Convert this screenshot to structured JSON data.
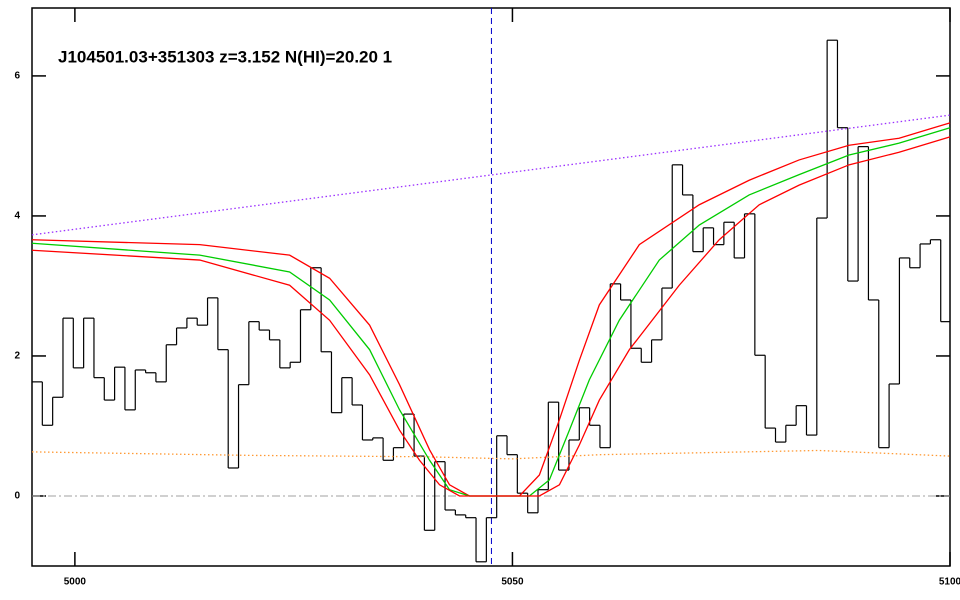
{
  "chart_data": {
    "type": "line",
    "title": "J104501.03+351303 z=3.152 N(HI)=20.20 1",
    "xlim": [
      4995.1,
      5100
    ],
    "ylim": [
      -1,
      6.97
    ],
    "xticks": [
      5000,
      5050,
      5100
    ],
    "yticks": [
      0,
      2,
      4,
      6
    ],
    "hline": {
      "value": 0,
      "color": "#a0a0a0"
    },
    "vline": {
      "value": 5047.6,
      "color": "#0000cc"
    },
    "series": [
      {
        "color": "#000000",
        "style": "steps",
        "x": [
          4995.69,
          4996.87,
          4998.05,
          4999.23,
          5000.41,
          5001.59,
          5002.77,
          5003.95,
          5005.13,
          5006.31,
          5007.49,
          5008.67,
          5009.85,
          5011.03,
          5012.21,
          5013.39,
          5014.57,
          5015.75,
          5016.93,
          5018.11,
          5019.29,
          5020.47,
          5021.65,
          5022.83,
          5024.01,
          5025.19,
          5026.37,
          5027.55,
          5028.73,
          5029.91,
          5031.09,
          5032.27,
          5033.45,
          5034.63,
          5035.81,
          5036.99,
          5038.17,
          5039.35,
          5040.53,
          5041.71,
          5042.89,
          5044.07,
          5045.25,
          5046.43,
          5047.61,
          5048.79,
          5049.97,
          5051.15,
          5052.33,
          5053.51,
          5054.69,
          5055.87,
          5057.05,
          5058.23,
          5059.41,
          5060.59,
          5061.77,
          5062.95,
          5064.13,
          5065.31,
          5066.49,
          5067.67,
          5068.85,
          5070.03,
          5071.21,
          5072.39,
          5073.57,
          5074.75,
          5075.93,
          5077.11,
          5078.29,
          5079.47,
          5080.65,
          5081.83,
          5083.01,
          5084.19,
          5085.37,
          5086.55,
          5087.73,
          5088.91,
          5090.09,
          5091.27,
          5092.45,
          5093.63,
          5094.81,
          5095.99,
          5097.17,
          5098.35,
          5099.53
        ],
        "values": [
          1.63,
          1.01,
          1.41,
          2.54,
          1.83,
          2.54,
          1.69,
          1.37,
          1.84,
          1.23,
          1.8,
          1.76,
          1.63,
          2.16,
          2.4,
          2.54,
          2.44,
          2.83,
          2.09,
          0.4,
          1.59,
          2.49,
          2.37,
          2.23,
          1.83,
          1.91,
          2.66,
          3.26,
          2.06,
          1.19,
          1.69,
          1.3,
          0.8,
          0.83,
          0.51,
          0.69,
          1.17,
          0.57,
          -0.49,
          0.49,
          -0.2,
          -0.27,
          -0.31,
          -0.94,
          -0.31,
          0.86,
          0.59,
          0.04,
          -0.24,
          0.09,
          1.34,
          0.37,
          0.8,
          1.26,
          1.01,
          0.69,
          3.03,
          2.8,
          2.11,
          1.91,
          2.23,
          2.97,
          4.73,
          4.3,
          3.49,
          3.83,
          3.59,
          3.91,
          3.4,
          4.03,
          2.01,
          0.97,
          0.77,
          1.01,
          1.29,
          0.87,
          3.97,
          6.51,
          5.26,
          3.07,
          4.99,
          2.8,
          0.69,
          1.6,
          3.4,
          3.26,
          3.6,
          3.66,
          2.49
        ]
      },
      {
        "color": "#9b30ff",
        "style": "dotted",
        "x": [
          4995.1,
          5100
        ],
        "values": [
          3.73,
          5.44
        ]
      },
      {
        "color": "#ff9933",
        "style": "dotted",
        "x": [
          4995.1,
          5020,
          5040,
          5050,
          5060,
          5085,
          5100
        ],
        "values": [
          0.63,
          0.58,
          0.56,
          0.53,
          0.59,
          0.65,
          0.57
        ]
      },
      {
        "color": "#ff0000",
        "style": "solid",
        "x": [
          4995.1,
          5014.27,
          5024.54,
          5029.11,
          5033.68,
          5037.1,
          5040.53,
          5042.81,
          5045.09,
          5050.8,
          5053.08,
          5055.37,
          5057.65,
          5059.93,
          5064.5,
          5071.35,
          5077.05,
          5082.76,
          5088.47,
          5094.18,
          5100
        ],
        "values": [
          3.66,
          3.59,
          3.44,
          3.11,
          2.44,
          1.59,
          0.66,
          0.16,
          0,
          0,
          0.3,
          1.09,
          1.94,
          2.73,
          3.59,
          4.16,
          4.51,
          4.8,
          5.01,
          5.11,
          5.33
        ]
      },
      {
        "color": "#00cc00",
        "style": "solid",
        "x": [
          4995.1,
          5014.27,
          5024.54,
          5029.11,
          5033.68,
          5037.1,
          5040.53,
          5042.81,
          5045.09,
          5051.94,
          5054.22,
          5056.51,
          5058.79,
          5062.21,
          5066.78,
          5071.35,
          5077.05,
          5082.76,
          5088.47,
          5094.18,
          5100
        ],
        "values": [
          3.61,
          3.44,
          3.2,
          2.8,
          2.09,
          1.23,
          0.51,
          0.09,
          0,
          0,
          0.23,
          0.94,
          1.66,
          2.51,
          3.37,
          3.87,
          4.3,
          4.59,
          4.87,
          5.04,
          5.26
        ]
      },
      {
        "color": "#ff0000",
        "style": "solid",
        "x": [
          4995.1,
          5014.27,
          5024.54,
          5029.11,
          5033.68,
          5037.1,
          5039.38,
          5041.67,
          5043.95,
          5053.08,
          5055.37,
          5057.65,
          5059.93,
          5063.36,
          5069.06,
          5073.63,
          5078.2,
          5082.76,
          5088.47,
          5094.18,
          5100
        ],
        "values": [
          3.51,
          3.37,
          3.01,
          2.51,
          1.73,
          0.94,
          0.51,
          0.16,
          0,
          0,
          0.16,
          0.73,
          1.37,
          2.09,
          3.01,
          3.66,
          4.16,
          4.44,
          4.73,
          4.91,
          5.13
        ]
      }
    ]
  }
}
